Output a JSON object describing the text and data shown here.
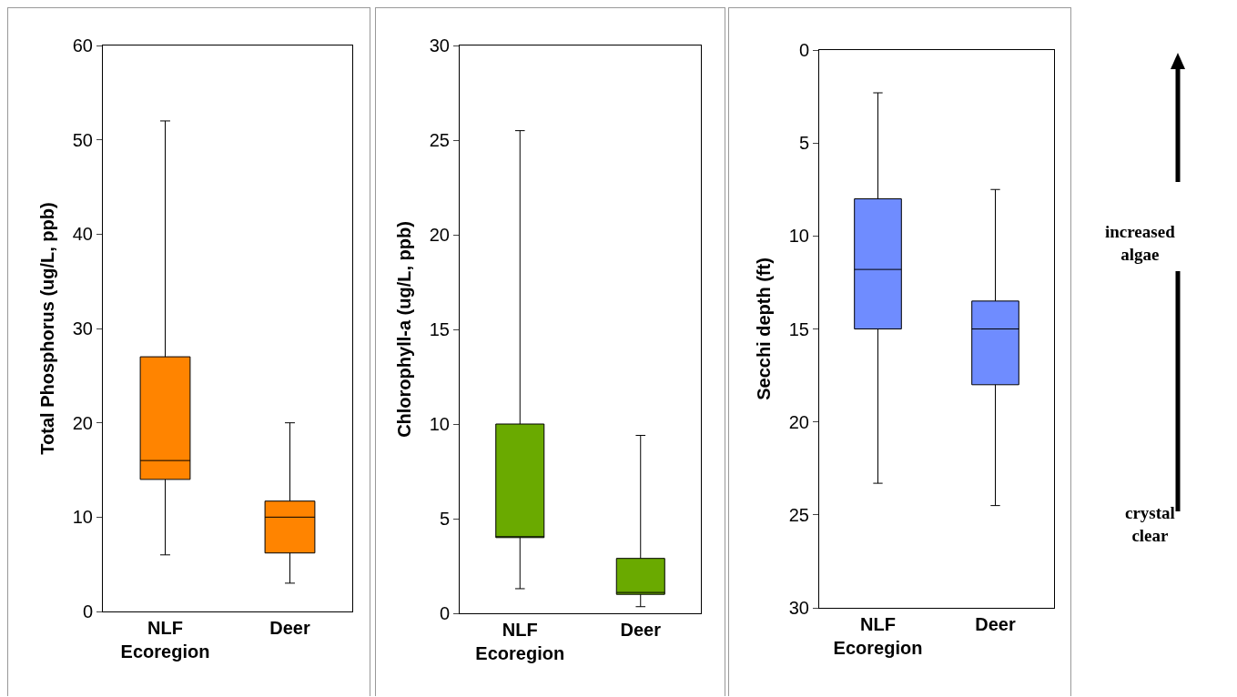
{
  "chart_data": [
    {
      "type": "box",
      "ylabel": "Total Phosphorus (ug/L, ppb)",
      "categories": [
        "NLF Ecoregion",
        "Deer"
      ],
      "color": "#ff8400",
      "ylim": [
        0,
        60
      ],
      "yticks": [
        0,
        10,
        20,
        30,
        40,
        50,
        60
      ],
      "grid": false,
      "legend": false,
      "boxes": [
        {
          "low": 6,
          "q1": 14,
          "median": 16,
          "q3": 27,
          "high": 52
        },
        {
          "low": 3,
          "q1": 6.2,
          "median": 10,
          "q3": 11.7,
          "high": 20
        }
      ]
    },
    {
      "type": "box",
      "ylabel": "Chlorophyll-a (ug/L, ppb)",
      "categories": [
        "NLF Ecoregion",
        "Deer"
      ],
      "color": "#6aaa00",
      "ylim": [
        0,
        30
      ],
      "yticks": [
        0,
        5,
        10,
        15,
        20,
        25,
        30
      ],
      "grid": false,
      "legend": false,
      "boxes": [
        {
          "low": 1.3,
          "q1": 4,
          "median": 4,
          "q3": 10,
          "high": 25.5
        },
        {
          "low": 0.35,
          "q1": 1,
          "median": 1.1,
          "q3": 2.9,
          "high": 9.4
        }
      ]
    },
    {
      "type": "box",
      "ylabel": "Secchi depth (ft)",
      "categories": [
        "NLF Ecoregion",
        "Deer"
      ],
      "color": "#6f8cff",
      "ylim": [
        30,
        0
      ],
      "yticks": [
        0,
        5,
        10,
        15,
        20,
        25,
        30
      ],
      "grid": false,
      "legend": false,
      "boxes": [
        {
          "low": 2.3,
          "q1": 8,
          "median": 11.8,
          "q3": 15,
          "high": 23.3
        },
        {
          "low": 7.5,
          "q1": 13.5,
          "median": 15,
          "q3": 18,
          "high": 24.5
        }
      ],
      "annotations": [
        "increased algae",
        "crystal clear"
      ]
    }
  ]
}
